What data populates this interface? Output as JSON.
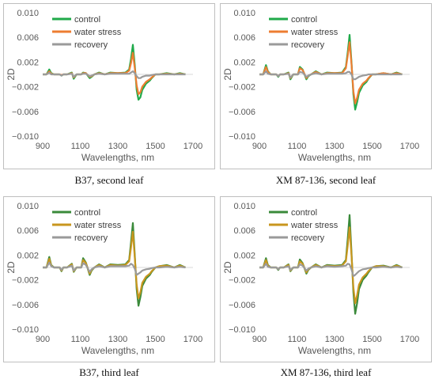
{
  "colors": {
    "control_a": "#1faa4a",
    "control_b": "#3a8a3a",
    "water_stress_a": "#ed7d31",
    "water_stress_b": "#c8961e",
    "recovery": "#9a9a9a",
    "frame": "#bfbfbf",
    "axis_text": "#595959"
  },
  "chart_data": [
    {
      "type": "line",
      "caption": "B37, second leaf",
      "xlabel": "Wavelengths, nm",
      "ylabel": "2D",
      "xlim": [
        900,
        1700
      ],
      "ylim": [
        -0.01,
        0.01
      ],
      "xticks": [
        "900",
        "1100",
        "1300",
        "1500",
        "1700"
      ],
      "yticks": [
        "0.010",
        "0.006",
        "0.002",
        "−0.002",
        "−0.006",
        "−0.010"
      ],
      "x": [
        900,
        920,
        935,
        945,
        960,
        990,
        1000,
        1010,
        1030,
        1055,
        1065,
        1080,
        1105,
        1115,
        1130,
        1150,
        1160,
        1175,
        1200,
        1230,
        1260,
        1300,
        1340,
        1360,
        1370,
        1380,
        1390,
        1400,
        1410,
        1420,
        1430,
        1450,
        1470,
        1480,
        1500,
        1520,
        1560,
        1600,
        1630,
        1660
      ],
      "series": [
        {
          "name": "control",
          "color_key": "control_a",
          "values": [
            0,
            0,
            0.0008,
            0.0002,
            0,
            0,
            -0.0002,
            0,
            0,
            0.0003,
            -0.0007,
            0,
            0,
            0.0003,
            0.0002,
            -0.0006,
            -0.0004,
            0,
            0.0003,
            0,
            0.0003,
            0.0002,
            0.0003,
            0.0008,
            0.0025,
            0.0048,
            0.0015,
            -0.0025,
            -0.0041,
            -0.0037,
            -0.0025,
            -0.0015,
            -0.001,
            -0.0006,
            0,
            0,
            0.0002,
            0,
            0.0002,
            0
          ]
        },
        {
          "name": "water stress",
          "color_key": "water_stress_a",
          "values": [
            0,
            0,
            0.0005,
            0.0001,
            0,
            0,
            -0.0001,
            0,
            0,
            0.0002,
            -0.0005,
            0,
            0,
            0.0002,
            0.0002,
            -0.0004,
            -0.0003,
            0,
            0.0002,
            0,
            0.0002,
            0.0002,
            0.0002,
            0.0006,
            0.0018,
            0.0035,
            0.001,
            -0.0018,
            -0.0032,
            -0.0029,
            -0.002,
            -0.0012,
            -0.0008,
            -0.0005,
            0,
            0,
            0.0001,
            0,
            0.0001,
            0
          ]
        },
        {
          "name": "recovery",
          "color_key": "recovery",
          "values": [
            0,
            0,
            0.0003,
            0,
            0,
            0,
            -0.0002,
            0,
            0,
            0.0001,
            -0.0004,
            0,
            0,
            0.0001,
            0.0001,
            -0.0003,
            -0.0002,
            0,
            0.0001,
            0,
            0.0001,
            0.0001,
            0.0001,
            0.0001,
            0.0003,
            0.0005,
            0.0002,
            -0.0003,
            -0.0006,
            -0.0006,
            -0.0004,
            -0.0002,
            -0.0002,
            -0.0001,
            0,
            0,
            0,
            0,
            0,
            0
          ]
        }
      ]
    },
    {
      "type": "line",
      "caption": "XM 87-136, second leaf",
      "xlabel": "Wavelengths, nm",
      "ylabel": "2D",
      "xlim": [
        900,
        1700
      ],
      "ylim": [
        -0.01,
        0.01
      ],
      "xticks": [
        "900",
        "1100",
        "1300",
        "1500",
        "1700"
      ],
      "yticks": [
        "0.010",
        "0.006",
        "0.002",
        "−0.002",
        "−0.006",
        "−0.010"
      ],
      "x": [
        900,
        920,
        935,
        945,
        960,
        990,
        1000,
        1010,
        1030,
        1055,
        1065,
        1080,
        1105,
        1115,
        1130,
        1150,
        1160,
        1175,
        1200,
        1230,
        1260,
        1300,
        1340,
        1360,
        1370,
        1380,
        1390,
        1400,
        1410,
        1420,
        1430,
        1450,
        1470,
        1480,
        1500,
        1520,
        1560,
        1600,
        1630,
        1660
      ],
      "series": [
        {
          "name": "control",
          "color_key": "control_a",
          "values": [
            0,
            0,
            0.0015,
            0.0005,
            0,
            0,
            -0.0004,
            0,
            0,
            0.0003,
            -0.0008,
            0,
            0,
            0.0012,
            0.0008,
            -0.0008,
            -0.0003,
            0,
            0.0005,
            0,
            0.0003,
            0.0002,
            0.0003,
            0.0012,
            0.0035,
            0.0064,
            0.002,
            -0.0032,
            -0.0057,
            -0.0045,
            -0.003,
            -0.0018,
            -0.0012,
            -0.0007,
            0,
            0,
            0.0002,
            0,
            0.0003,
            0
          ]
        },
        {
          "name": "water stress",
          "color_key": "water_stress_a",
          "values": [
            0,
            0,
            0.0012,
            0.0004,
            0,
            0,
            -0.0003,
            0,
            0,
            0.0002,
            -0.0006,
            0,
            0,
            0.001,
            0.0007,
            -0.0006,
            -0.0002,
            0,
            0.0004,
            0,
            0.0002,
            0.0002,
            0.0002,
            0.001,
            0.003,
            0.0052,
            0.0017,
            -0.0027,
            -0.0047,
            -0.0038,
            -0.0025,
            -0.0015,
            -0.001,
            -0.0006,
            0,
            0,
            0.0002,
            0,
            0.0002,
            0
          ]
        },
        {
          "name": "recovery",
          "color_key": "recovery",
          "values": [
            0,
            0,
            0.0005,
            0.0001,
            0,
            0,
            -0.0003,
            0,
            0,
            0.0001,
            -0.0005,
            0,
            0,
            0.0004,
            0.0003,
            -0.0004,
            -0.0002,
            0,
            0.0002,
            0,
            0.0001,
            0.0001,
            0.0001,
            0.0002,
            0.0004,
            0.0004,
            0,
            -0.0008,
            -0.0008,
            -0.0006,
            -0.0004,
            -0.0002,
            -0.0001,
            0,
            0,
            0,
            0,
            0,
            0,
            0
          ]
        }
      ]
    },
    {
      "type": "line",
      "caption": "B37, third leaf",
      "xlabel": "Wavelengths, nm",
      "ylabel": "2D",
      "xlim": [
        900,
        1700
      ],
      "ylim": [
        -0.01,
        0.01
      ],
      "xticks": [
        "900",
        "1100",
        "1300",
        "1500",
        "1700"
      ],
      "yticks": [
        "0.010",
        "0.006",
        "0.002",
        "−0.002",
        "−0.006",
        "−0.010"
      ],
      "x": [
        900,
        920,
        935,
        945,
        960,
        990,
        1000,
        1010,
        1030,
        1055,
        1065,
        1080,
        1105,
        1115,
        1130,
        1150,
        1160,
        1175,
        1200,
        1230,
        1260,
        1300,
        1340,
        1360,
        1370,
        1380,
        1390,
        1400,
        1410,
        1420,
        1430,
        1450,
        1470,
        1480,
        1500,
        1520,
        1560,
        1600,
        1630,
        1660
      ],
      "series": [
        {
          "name": "control",
          "color_key": "control_b",
          "values": [
            0,
            0,
            0.0017,
            0.0004,
            0,
            0,
            -0.0006,
            0,
            0,
            0.0006,
            -0.0007,
            0,
            0,
            0.0015,
            0.0008,
            -0.0012,
            -0.0005,
            0,
            0.0005,
            0,
            0.0005,
            0.0004,
            0.0005,
            0.0012,
            0.004,
            0.0072,
            0.002,
            -0.0035,
            -0.0062,
            -0.0048,
            -0.003,
            -0.0018,
            -0.0012,
            -0.0007,
            0,
            0.0002,
            0.0004,
            0,
            0.0004,
            0
          ]
        },
        {
          "name": "water stress",
          "color_key": "water_stress_b",
          "values": [
            0,
            0,
            0.0014,
            0.0003,
            0,
            0,
            -0.0005,
            0,
            0,
            0.0005,
            -0.0006,
            0,
            0,
            0.0012,
            0.0007,
            -0.001,
            -0.0004,
            0,
            0.0004,
            0,
            0.0004,
            0.0003,
            0.0004,
            0.001,
            0.0032,
            0.0058,
            0.0016,
            -0.0028,
            -0.005,
            -0.004,
            -0.0025,
            -0.0015,
            -0.001,
            -0.0006,
            0,
            0.0002,
            0.0003,
            0,
            0.0003,
            0
          ]
        },
        {
          "name": "recovery",
          "color_key": "recovery",
          "values": [
            0,
            0,
            0.0008,
            0.0002,
            0,
            0,
            -0.0004,
            0,
            0,
            0.0003,
            -0.0005,
            0,
            0,
            0.0007,
            0.0004,
            -0.0007,
            -0.0003,
            0,
            0.0002,
            0,
            0.0002,
            0.0002,
            0.0002,
            0.0003,
            0.0006,
            0.0004,
            -0.0002,
            -0.0012,
            -0.001,
            -0.0008,
            -0.0005,
            -0.0003,
            -0.0002,
            -0.0001,
            0,
            0,
            0.0001,
            0,
            0.0001,
            0
          ]
        }
      ]
    },
    {
      "type": "line",
      "caption": "XM 87-136, third leaf",
      "xlabel": "Wavelengths, nm",
      "ylabel": "2D",
      "xlim": [
        900,
        1700
      ],
      "ylim": [
        -0.01,
        0.01
      ],
      "xticks": [
        "900",
        "1100",
        "1300",
        "1500",
        "1700"
      ],
      "yticks": [
        "0.010",
        "0.006",
        "0.002",
        "−0.002",
        "−0.006",
        "−0.010"
      ],
      "x": [
        900,
        920,
        935,
        945,
        960,
        990,
        1000,
        1010,
        1030,
        1055,
        1065,
        1080,
        1105,
        1115,
        1130,
        1150,
        1160,
        1175,
        1200,
        1230,
        1260,
        1300,
        1340,
        1360,
        1370,
        1380,
        1390,
        1400,
        1410,
        1420,
        1430,
        1450,
        1470,
        1480,
        1500,
        1520,
        1560,
        1600,
        1630,
        1660
      ],
      "series": [
        {
          "name": "control",
          "color_key": "control_b",
          "values": [
            0,
            0,
            0.0015,
            0.0004,
            0,
            0,
            -0.0004,
            0,
            0,
            0.0005,
            -0.0006,
            0,
            0,
            0.0013,
            0.0007,
            -0.001,
            -0.0004,
            0,
            0.0005,
            0,
            0.0004,
            0.0003,
            0.0004,
            0.0012,
            0.0045,
            0.0085,
            0.0025,
            -0.004,
            -0.0075,
            -0.0058,
            -0.0035,
            -0.002,
            -0.0013,
            -0.0008,
            0,
            0.0002,
            0.0003,
            0,
            0.0004,
            0
          ]
        },
        {
          "name": "water stress",
          "color_key": "water_stress_b",
          "values": [
            0,
            0,
            0.0012,
            0.0003,
            0,
            0,
            -0.0003,
            0,
            0,
            0.0004,
            -0.0005,
            0,
            0,
            0.001,
            0.0006,
            -0.0008,
            -0.0003,
            0,
            0.0004,
            0,
            0.0003,
            0.0002,
            0.0003,
            0.001,
            0.0035,
            0.0065,
            0.002,
            -0.0032,
            -0.0058,
            -0.0045,
            -0.0028,
            -0.0016,
            -0.001,
            -0.0006,
            0,
            0.0002,
            0.0002,
            0,
            0.0003,
            0
          ]
        },
        {
          "name": "recovery",
          "color_key": "recovery",
          "values": [
            0,
            0,
            0.0006,
            0.0001,
            0,
            0,
            -0.0003,
            0,
            0,
            0.0002,
            -0.0004,
            0,
            0,
            0.0005,
            0.0003,
            -0.0005,
            -0.0002,
            0,
            0.0002,
            0,
            0.0002,
            0.0001,
            0.0002,
            0.0003,
            0.0006,
            0.0005,
            -0.0003,
            -0.0014,
            -0.0012,
            -0.0009,
            -0.0006,
            -0.0003,
            -0.0002,
            -0.0001,
            0,
            0,
            0.0001,
            0,
            0.0001,
            0
          ]
        }
      ]
    }
  ]
}
